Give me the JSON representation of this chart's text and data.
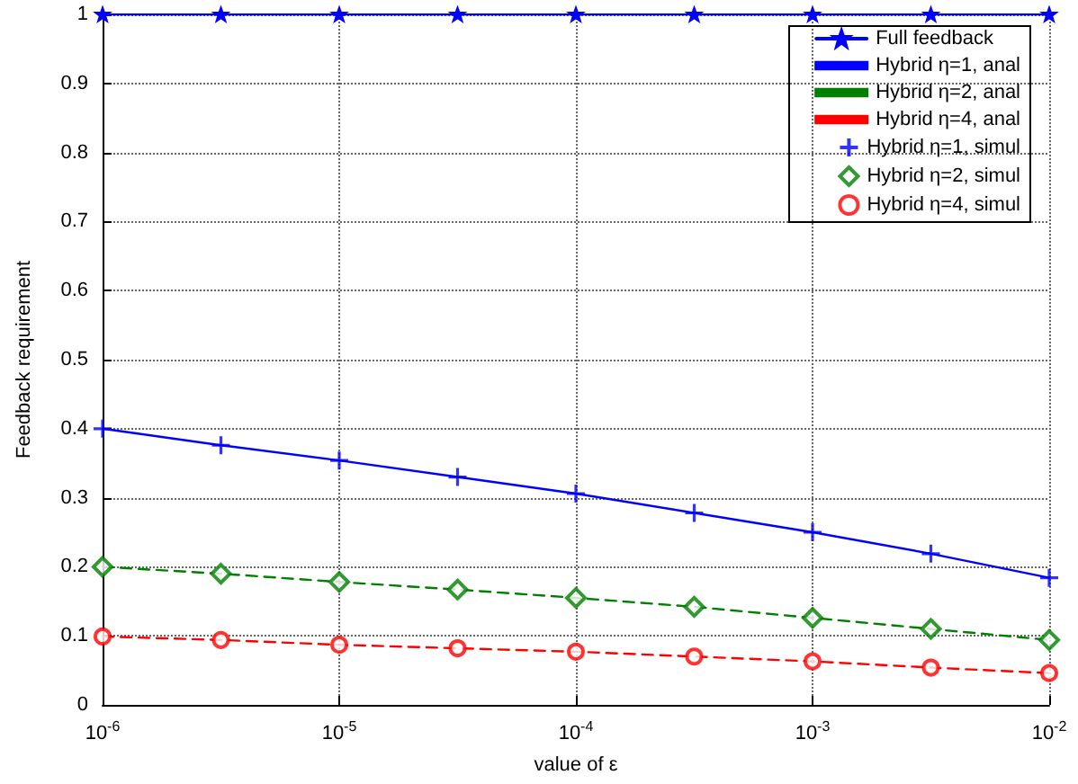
{
  "chart_data": {
    "type": "line",
    "xlabel": "value of ε",
    "ylabel": "Feedback requirement",
    "x": [
      1e-06,
      3.162e-06,
      1e-05,
      3.162e-05,
      0.0001,
      0.0003162,
      0.001,
      0.003162,
      0.01
    ],
    "log": "x",
    "xlim": [
      1e-06,
      0.01
    ],
    "xticks": [
      {
        "value": 1e-06,
        "label": "10$^{-6}$"
      },
      {
        "value": 1e-05,
        "label": "10$^{-5}$"
      },
      {
        "value": 0.0001,
        "label": "10$^{-4}$"
      },
      {
        "value": 0.001,
        "label": "10$^{-3}$"
      },
      {
        "value": 0.01,
        "label": "10$^{-2}$"
      }
    ],
    "ylim": [
      0,
      1
    ],
    "yticks": [
      0,
      0.1,
      0.2,
      0.3,
      0.4,
      0.5,
      0.6,
      0.7,
      0.8,
      0.9,
      1
    ],
    "grid": true,
    "legend": "top right",
    "series": [
      {
        "name": "Full feedback",
        "type": "line",
        "color": "#0000ff",
        "marker": "star",
        "line_style": "solid",
        "values": [
          1,
          1,
          1,
          1,
          1,
          1,
          1,
          1,
          1
        ]
      },
      {
        "name": "Hybrid η=1, anal",
        "type": "line",
        "color": "#0000ff",
        "marker": "none",
        "line_style": "solid",
        "values": [
          0.4,
          0.376,
          0.354,
          0.33,
          0.306,
          0.278,
          0.25,
          0.219,
          0.184
        ]
      },
      {
        "name": "Hybrid η=2, anal",
        "type": "line",
        "color": "#008000",
        "marker": "none",
        "line_style": "dashed",
        "values": [
          0.2,
          0.19,
          0.178,
          0.167,
          0.155,
          0.142,
          0.126,
          0.11,
          0.094
        ]
      },
      {
        "name": "Hybrid η=4, anal",
        "type": "line",
        "color": "#ff0000",
        "marker": "none",
        "line_style": "dashed",
        "values": [
          0.099,
          0.094,
          0.087,
          0.082,
          0.077,
          0.07,
          0.063,
          0.054,
          0.046
        ]
      },
      {
        "name": "Hybrid η=1, simul",
        "type": "scatter",
        "color": "#0000ff",
        "marker": "cross",
        "values": [
          0.4,
          0.376,
          0.354,
          0.33,
          0.306,
          0.278,
          0.25,
          0.219,
          0.184
        ]
      },
      {
        "name": "Hybrid η=2, simul",
        "type": "scatter",
        "color": "#008000",
        "marker": "diamond",
        "values": [
          0.2,
          0.19,
          0.178,
          0.167,
          0.155,
          0.142,
          0.126,
          0.11,
          0.094
        ]
      },
      {
        "name": "Hybrid η=4, simul",
        "type": "scatter",
        "color": "#ff0000",
        "marker": "circle",
        "values": [
          0.099,
          0.094,
          0.087,
          0.082,
          0.077,
          0.07,
          0.063,
          0.054,
          0.046
        ]
      }
    ]
  }
}
